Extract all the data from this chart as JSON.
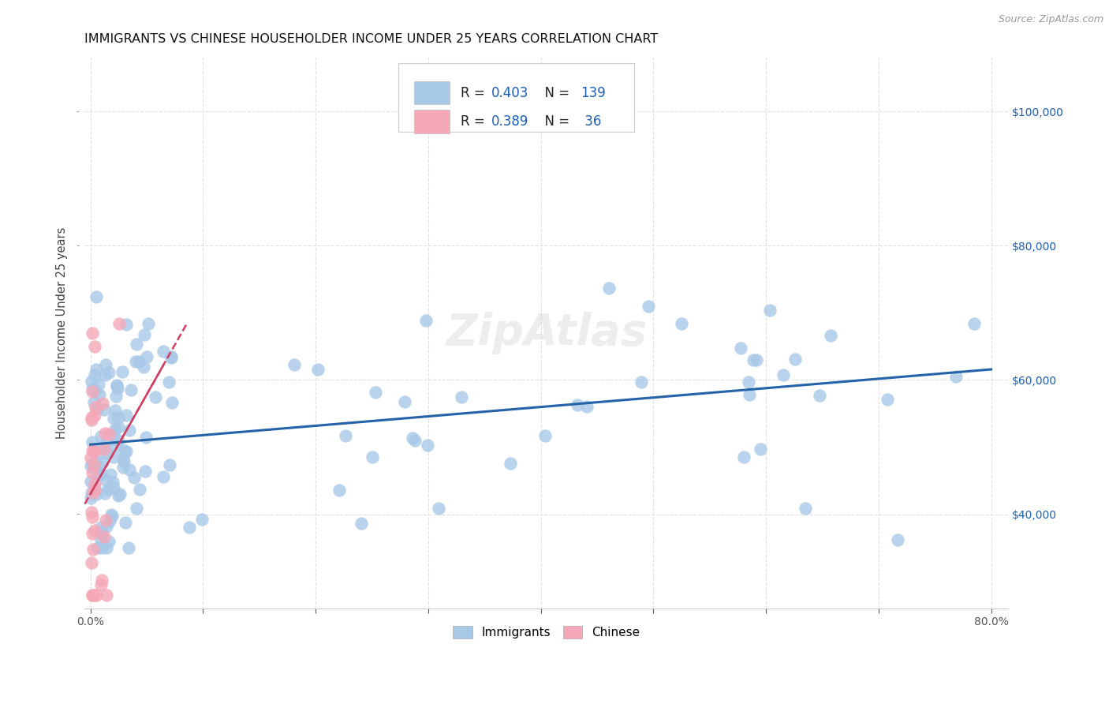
{
  "title": "IMMIGRANTS VS CHINESE HOUSEHOLDER INCOME UNDER 25 YEARS CORRELATION CHART",
  "source": "Source: ZipAtlas.com",
  "ylabel": "Householder Income Under 25 years",
  "xlim": [
    -0.005,
    0.815
  ],
  "ylim": [
    26000,
    108000
  ],
  "yticks": [
    40000,
    60000,
    80000,
    100000
  ],
  "xticks": [
    0.0,
    0.1,
    0.2,
    0.3,
    0.4,
    0.5,
    0.6,
    0.7,
    0.8
  ],
  "xtick_show": [
    0.0,
    0.8
  ],
  "watermark": "ZipAtlas",
  "legend_blue_R": "0.403",
  "legend_blue_N": "139",
  "legend_pink_R": "0.389",
  "legend_pink_N": " 36",
  "blue_scatter_color": "#a8c8e8",
  "blue_line_color": "#2563a8",
  "pink_scatter_color": "#f4a8b8",
  "pink_line_color": "#d04060",
  "grid_color": "#e0e0e0",
  "grid_linestyle": "--",
  "title_color": "#111111",
  "source_color": "#999999",
  "right_tick_color": "#1a5fb4",
  "legend_text_color": "#1a5fb4",
  "legend_label_color": "#222222",
  "seed": 77
}
